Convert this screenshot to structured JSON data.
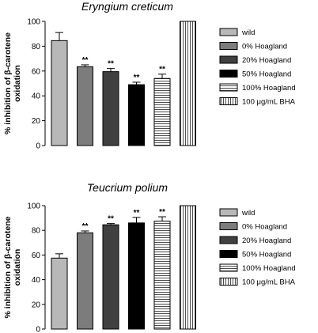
{
  "chart_data": [
    {
      "type": "bar",
      "title": "Eryngium creticum",
      "ylabel_lines": [
        "% inhibition of β-carotene",
        "oxidation"
      ],
      "ylim": [
        0,
        100
      ],
      "yticks": [
        "0",
        "20",
        "40",
        "60",
        "80",
        "100"
      ],
      "categories": [
        "wild",
        "0% Hoagland",
        "20% Hoagland",
        "50% Hoagland",
        "100% Hoagland",
        "100 μg/mL BHA"
      ],
      "values": [
        84.5,
        63.5,
        59.5,
        49.0,
        54.0,
        100
      ],
      "errors": [
        6.5,
        1.5,
        2.5,
        2.0,
        3.5,
        0
      ],
      "significance": [
        "",
        "**",
        "**",
        "**",
        "**",
        ""
      ],
      "fills": [
        "light-gray",
        "mid-gray",
        "dark-gray",
        "black",
        "horizontal-stripes",
        "vertical-stripes"
      ],
      "legend": [
        "wild",
        "0% Hoagland",
        "20% Hoagland",
        "50% Hoagland",
        "100% Hoagland",
        "100 μg/mL BHA"
      ]
    },
    {
      "type": "bar",
      "title": "Teucrium polium",
      "ylabel_lines": [
        "% inhibition of β-carotene",
        "oxidation"
      ],
      "ylim": [
        0,
        100
      ],
      "yticks": [
        "0",
        "20",
        "40",
        "60",
        "80",
        "100"
      ],
      "categories": [
        "wild",
        "0% Hoagland",
        "20% Hoagland",
        "50% Hoagland",
        "100% Hoagland",
        "100 μg/mL BHA"
      ],
      "values": [
        57.5,
        78.0,
        84.5,
        86.0,
        87.5,
        100
      ],
      "errors": [
        3.5,
        1.5,
        1.0,
        4.5,
        3.5,
        0
      ],
      "significance": [
        "",
        "**",
        "**",
        "**",
        "**",
        ""
      ],
      "fills": [
        "light-gray",
        "mid-gray",
        "dark-gray",
        "black",
        "horizontal-stripes",
        "vertical-stripes"
      ],
      "legend": [
        "wild",
        "0% Hoagland",
        "20% Hoagland",
        "50% Hoagland",
        "100% Hoagland",
        "100 μg/mL BHA"
      ]
    }
  ],
  "colors": {
    "light-gray": "#b8b8b8",
    "mid-gray": "#7c7c7c",
    "dark-gray": "#404040",
    "black": "#000000",
    "stroke": "#000000",
    "background": "#ffffff"
  }
}
